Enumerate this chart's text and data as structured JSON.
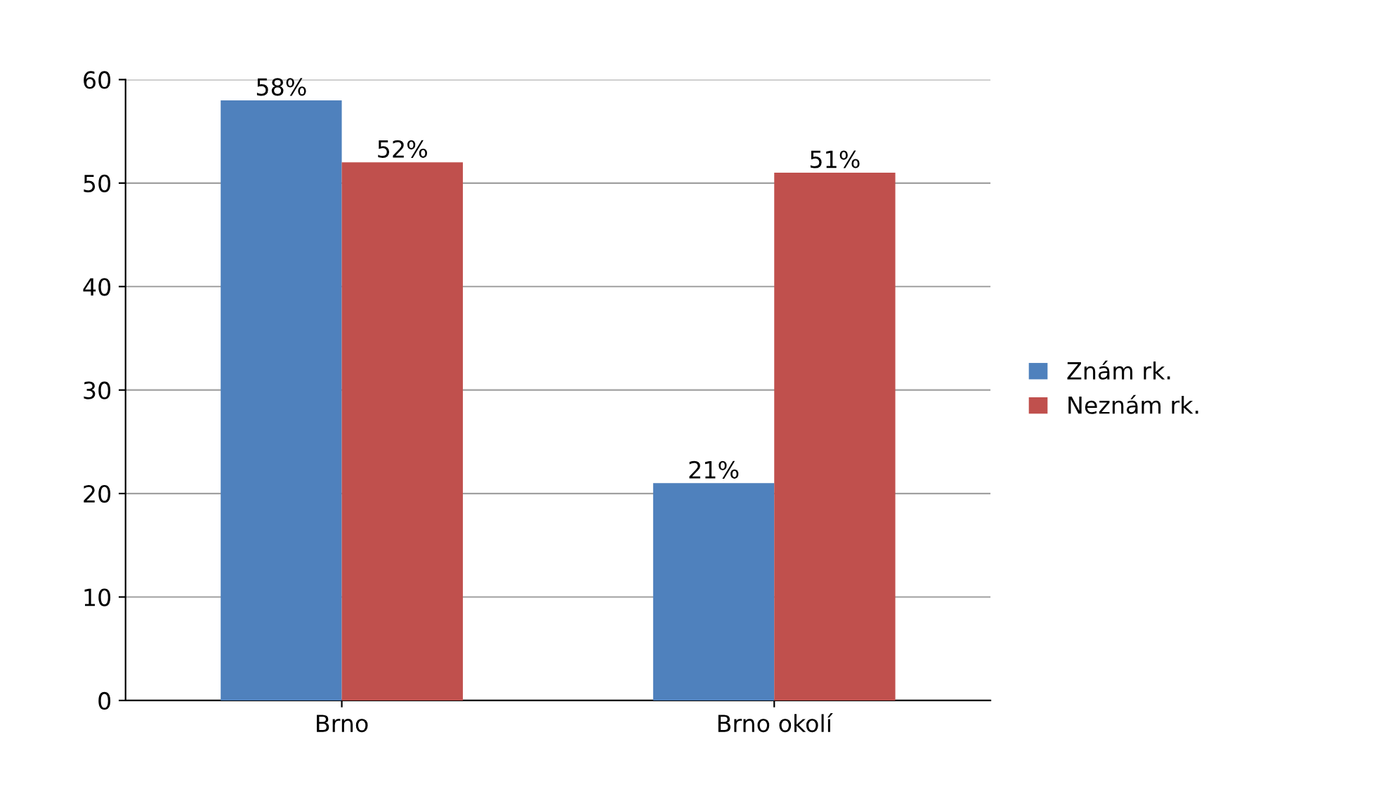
{
  "chart_data": {
    "type": "bar",
    "categories": [
      "Brno",
      "Brno okolí"
    ],
    "series": [
      {
        "name": "Znám rk.",
        "color": "#4f81bd",
        "values": [
          58,
          21
        ],
        "value_labels": [
          "58%",
          "21%"
        ]
      },
      {
        "name": "Neznám rk.",
        "color": "#c0504d",
        "values": [
          52,
          51
        ],
        "value_labels": [
          "52%",
          "51%"
        ]
      }
    ],
    "ylim": [
      0,
      60
    ],
    "yticks": [
      0,
      10,
      20,
      30,
      40,
      50,
      60
    ],
    "grid": "y",
    "legend": "right"
  }
}
